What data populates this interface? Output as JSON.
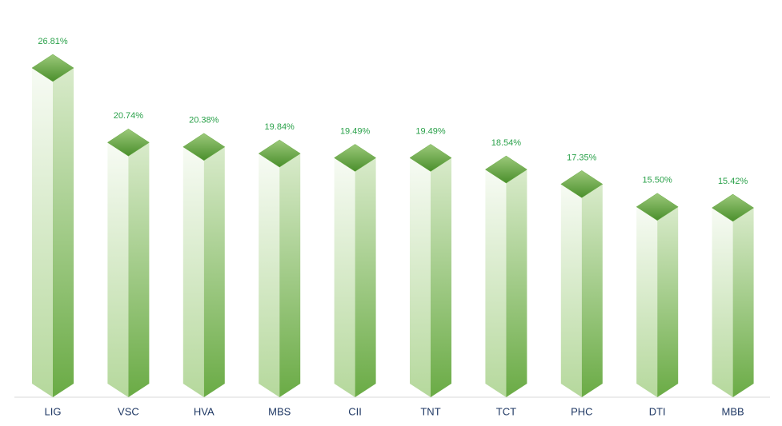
{
  "chart_data": {
    "type": "bar",
    "categories": [
      "LIG",
      "VSC",
      "HVA",
      "MBS",
      "CII",
      "TNT",
      "TCT",
      "PHC",
      "DTI",
      "MBB"
    ],
    "values": [
      26.81,
      20.74,
      20.38,
      19.84,
      19.49,
      19.49,
      18.54,
      17.35,
      15.5,
      15.42
    ],
    "value_labels": [
      "26.81%",
      "20.74%",
      "20.38%",
      "19.84%",
      "19.49%",
      "19.49%",
      "18.54%",
      "17.35%",
      "15.50%",
      "15.42%"
    ],
    "color": "#6aab45"
  }
}
